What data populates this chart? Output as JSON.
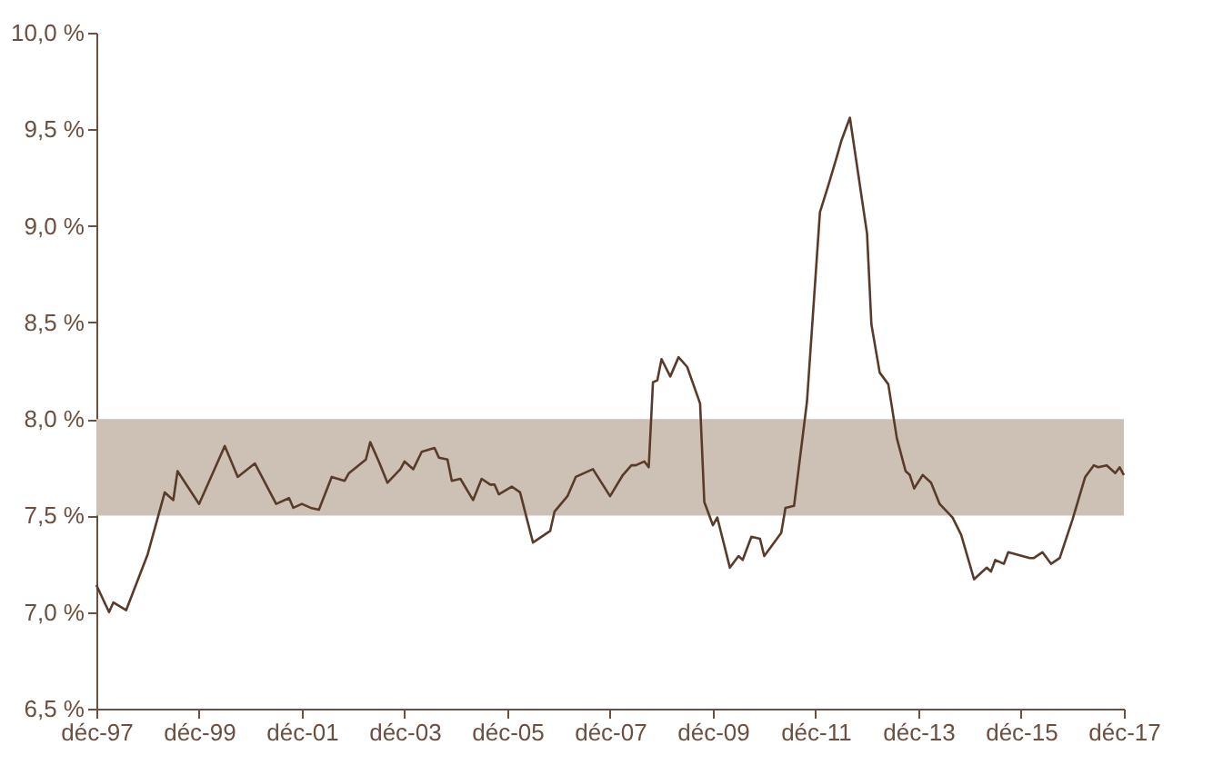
{
  "chart_data": {
    "type": "line",
    "x": [
      "1997-12",
      "1998-03",
      "1998-04",
      "1998-07",
      "1998-12",
      "1999-04",
      "1999-06",
      "1999-07",
      "1999-12",
      "2000-06",
      "2000-09",
      "2001-01",
      "2001-06",
      "2001-09",
      "2001-10",
      "2001-12",
      "2002-02",
      "2002-04",
      "2002-07",
      "2002-10",
      "2002-11",
      "2003-03",
      "2003-04",
      "2003-06",
      "2003-08",
      "2003-11",
      "2003-12",
      "2004-02",
      "2004-04",
      "2004-07",
      "2004-08",
      "2004-10",
      "2004-11",
      "2005-01",
      "2005-04",
      "2005-06",
      "2005-08",
      "2005-09",
      "2005-10",
      "2006-01",
      "2006-03",
      "2006-06",
      "2006-10",
      "2006-11",
      "2007-02",
      "2007-04",
      "2007-08",
      "2007-12",
      "2008-03",
      "2008-05",
      "2008-06",
      "2008-08",
      "2008-09",
      "2008-10",
      "2008-11",
      "2008-12",
      "2009-02",
      "2009-04",
      "2009-06",
      "2009-09",
      "2009-10",
      "2009-12",
      "2010-01",
      "2010-04",
      "2010-06",
      "2010-07",
      "2010-09",
      "2010-11",
      "2010-12",
      "2011-04",
      "2011-05",
      "2011-07",
      "2011-10",
      "2012-01",
      "2012-03",
      "2012-05",
      "2012-06",
      "2012-08",
      "2012-12",
      "2013-01",
      "2013-03",
      "2013-05",
      "2013-07",
      "2013-09",
      "2013-10",
      "2013-11",
      "2014-01",
      "2014-03",
      "2014-05",
      "2014-08",
      "2014-10",
      "2015-01",
      "2015-04",
      "2015-05",
      "2015-06",
      "2015-08",
      "2015-09",
      "2016-02",
      "2016-03",
      "2016-05",
      "2016-07",
      "2016-09",
      "2016-12",
      "2017-03",
      "2017-05",
      "2017-06",
      "2017-08",
      "2017-10",
      "2017-11",
      "2017-12"
    ],
    "series": [
      {
        "color": "#5a3a28",
        "values": [
          7.14,
          7.0,
          7.05,
          7.01,
          7.3,
          7.62,
          7.58,
          7.73,
          7.56,
          7.86,
          7.7,
          7.77,
          7.56,
          7.59,
          7.54,
          7.56,
          7.54,
          7.53,
          7.7,
          7.68,
          7.72,
          7.79,
          7.88,
          7.78,
          7.67,
          7.74,
          7.78,
          7.74,
          7.83,
          7.85,
          7.8,
          7.79,
          7.68,
          7.69,
          7.58,
          7.69,
          7.66,
          7.66,
          7.61,
          7.65,
          7.62,
          7.36,
          7.42,
          7.52,
          7.6,
          7.7,
          7.74,
          7.6,
          7.71,
          7.76,
          7.76,
          7.78,
          7.75,
          8.19,
          8.2,
          8.31,
          8.22,
          8.32,
          8.27,
          8.08,
          7.57,
          7.45,
          7.49,
          7.23,
          7.29,
          7.27,
          7.39,
          7.38,
          7.29,
          7.41,
          7.54,
          7.55,
          8.09,
          9.07,
          9.21,
          9.36,
          9.44,
          9.56,
          8.96,
          8.49,
          8.24,
          8.18,
          7.9,
          7.73,
          7.71,
          7.64,
          7.71,
          7.67,
          7.56,
          7.49,
          7.4,
          7.17,
          7.23,
          7.21,
          7.27,
          7.25,
          7.31,
          7.28,
          7.28,
          7.31,
          7.25,
          7.28,
          7.48,
          7.7,
          7.76,
          7.75,
          7.76,
          7.72,
          7.75,
          7.71
        ]
      }
    ],
    "xlim": [
      "1997-12",
      "2017-12"
    ],
    "xticks": [
      {
        "value": "1997-12",
        "label": "déc-97"
      },
      {
        "value": "1999-12",
        "label": "déc-99"
      },
      {
        "value": "2001-12",
        "label": "déc-01"
      },
      {
        "value": "2003-12",
        "label": "déc-03"
      },
      {
        "value": "2005-12",
        "label": "déc-05"
      },
      {
        "value": "2007-12",
        "label": "déc-07"
      },
      {
        "value": "2009-12",
        "label": "déc-09"
      },
      {
        "value": "2011-12",
        "label": "déc-11"
      },
      {
        "value": "2013-12",
        "label": "déc-13"
      },
      {
        "value": "2015-12",
        "label": "déc-15"
      },
      {
        "value": "2017-12",
        "label": "déc-17"
      }
    ],
    "ylim": [
      6.5,
      10.0
    ],
    "yticks": [
      {
        "value": 6.5,
        "label": "6,5 %"
      },
      {
        "value": 7.0,
        "label": "7,0 %"
      },
      {
        "value": 7.5,
        "label": "7,5 %"
      },
      {
        "value": 8.0,
        "label": "8,0 %"
      },
      {
        "value": 8.5,
        "label": "8,5 %"
      },
      {
        "value": 9.0,
        "label": "9,0 %"
      },
      {
        "value": 9.5,
        "label": "9,5 %"
      },
      {
        "value": 10.0,
        "label": "10,0 %"
      }
    ],
    "bands": [
      {
        "axis": "y",
        "from": 7.5,
        "to": 8.0,
        "color": "#cdc1b6"
      }
    ],
    "grid": false,
    "marker": "none",
    "line_style": "solid"
  }
}
